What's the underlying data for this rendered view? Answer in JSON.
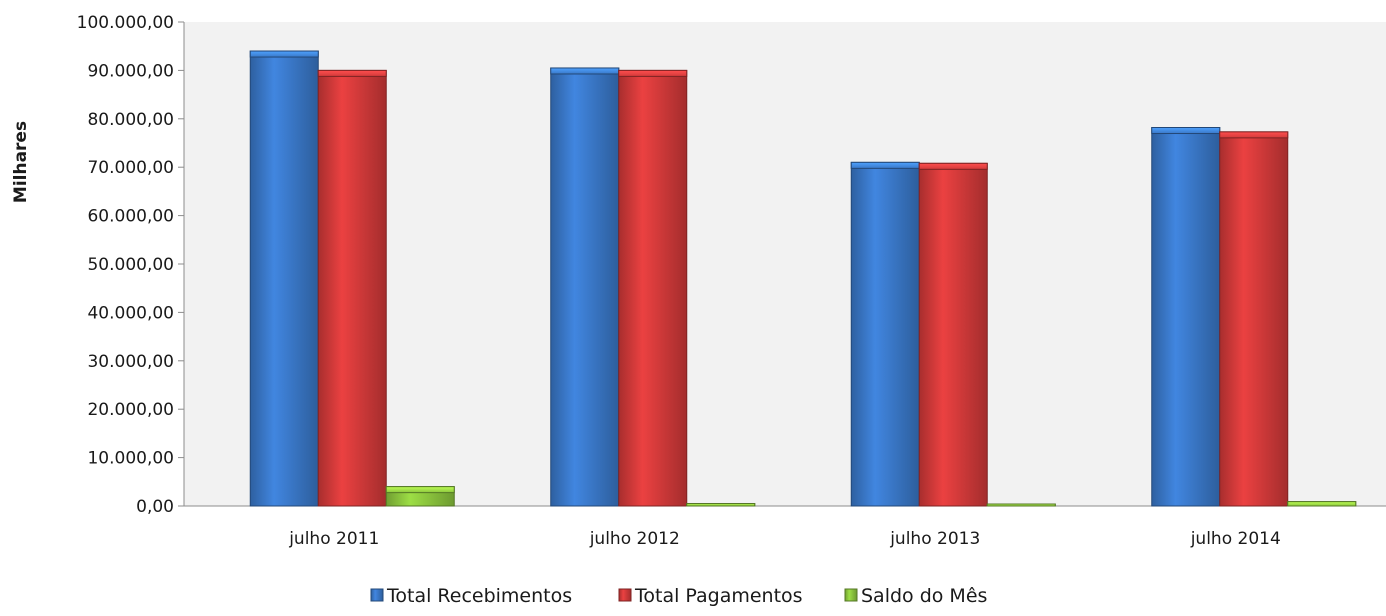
{
  "chart_data": {
    "type": "bar",
    "title": "",
    "xlabel": "",
    "ylabel": "Milhares",
    "ylim": [
      0,
      100000
    ],
    "yticks": [
      0,
      10000,
      20000,
      30000,
      40000,
      50000,
      60000,
      70000,
      80000,
      90000,
      100000
    ],
    "ytick_labels": [
      "0,00",
      "10.000,00",
      "20.000,00",
      "30.000,00",
      "40.000,00",
      "50.000,00",
      "60.000,00",
      "70.000,00",
      "80.000,00",
      "90.000,00",
      "100.000,00"
    ],
    "categories": [
      "julho 2011",
      "julho 2012",
      "julho 2013",
      "julho 2014"
    ],
    "series": [
      {
        "name": "Total Recebimentos",
        "values": [
          94000,
          90500,
          71000,
          78200
        ],
        "color": "#3a78c8"
      },
      {
        "name": "Total Pagamentos",
        "values": [
          90000,
          90000,
          70800,
          77300
        ],
        "color": "#d23a3a"
      },
      {
        "name": "Saldo do Mês",
        "values": [
          4000,
          500,
          200,
          900
        ],
        "color": "#8cc63e"
      }
    ],
    "grid": false,
    "legend_position": "bottom",
    "plot_background": "#f2f2f2"
  }
}
